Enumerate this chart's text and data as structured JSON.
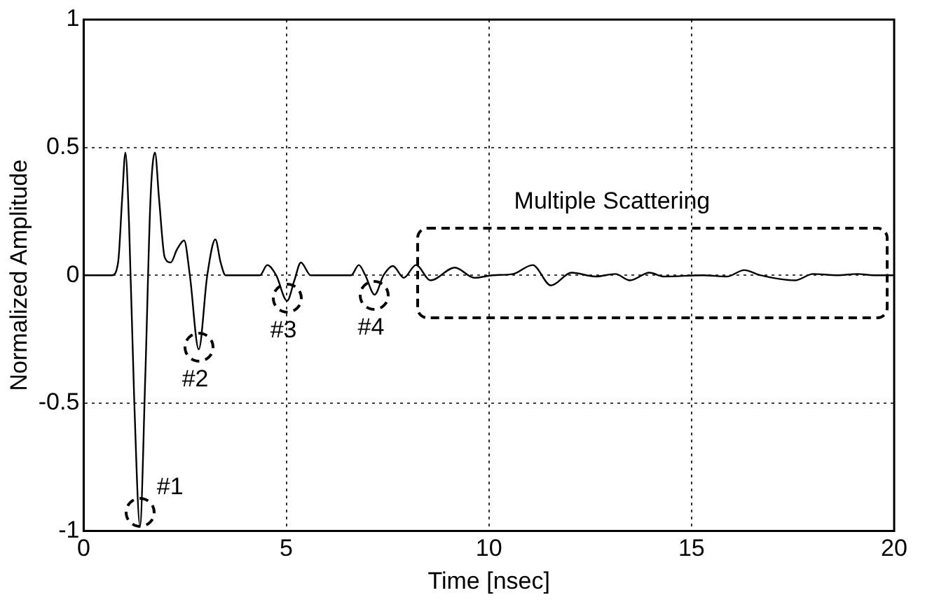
{
  "chart_data": {
    "type": "line",
    "xlabel": "Time [nsec]",
    "ylabel": "Normalized Amplitude",
    "xlim": [
      0,
      20
    ],
    "ylim": [
      -1,
      1
    ],
    "xticks": [
      0,
      5,
      10,
      15,
      20
    ],
    "yticks": [
      -1,
      -0.5,
      0,
      0.5,
      1
    ],
    "grid": true,
    "legend": false,
    "marker": "none",
    "line_style": "solid",
    "series": [
      {
        "color": "#000000",
        "x": [
          0,
          0.7,
          0.85,
          0.95,
          1.03,
          1.12,
          1.25,
          1.39,
          1.52,
          1.65,
          1.76,
          1.86,
          2.0,
          2.15,
          2.3,
          2.48,
          2.62,
          2.84,
          3.05,
          3.25,
          3.38,
          3.5,
          4.35,
          4.53,
          4.75,
          5.02,
          5.2,
          5.36,
          5.6,
          6.6,
          6.79,
          6.95,
          7.18,
          7.4,
          7.63,
          7.9,
          8.2,
          8.56,
          9.16,
          9.64,
          10.1,
          10.6,
          11.08,
          11.53,
          12.04,
          12.63,
          13.12,
          13.48,
          13.96,
          14.32,
          15.28,
          15.87,
          16.3,
          16.7,
          17.55,
          18.0,
          18.6,
          19.1,
          19.5,
          20
        ],
        "values": [
          0,
          0,
          0.05,
          0.3,
          0.48,
          0.2,
          -0.5,
          -0.98,
          -0.4,
          0.3,
          0.48,
          0.3,
          0.07,
          0.05,
          0.1,
          0.136,
          0.0,
          -0.29,
          0.0,
          0.14,
          0.05,
          0,
          0,
          0.04,
          0.0,
          -0.1,
          -0.02,
          0.05,
          0,
          0,
          0.04,
          0.0,
          -0.076,
          0.0,
          0.036,
          -0.01,
          0.04,
          -0.02,
          0.03,
          -0.01,
          0,
          0.005,
          0.04,
          -0.04,
          0.01,
          -0.005,
          0.005,
          -0.02,
          0.01,
          -0.005,
          0,
          -0.005,
          0.02,
          0,
          -0.02,
          0.005,
          0,
          0.005,
          0,
          0
        ]
      }
    ],
    "annotations": [
      {
        "text": "#1",
        "x": 1.39,
        "y": -0.93
      },
      {
        "text": "#2",
        "x": 2.84,
        "y": -0.28
      },
      {
        "text": "#3",
        "x": 5.02,
        "y": -0.09
      },
      {
        "text": "#4",
        "x": 7.18,
        "y": -0.08
      },
      "Multiple Scattering"
    ]
  }
}
